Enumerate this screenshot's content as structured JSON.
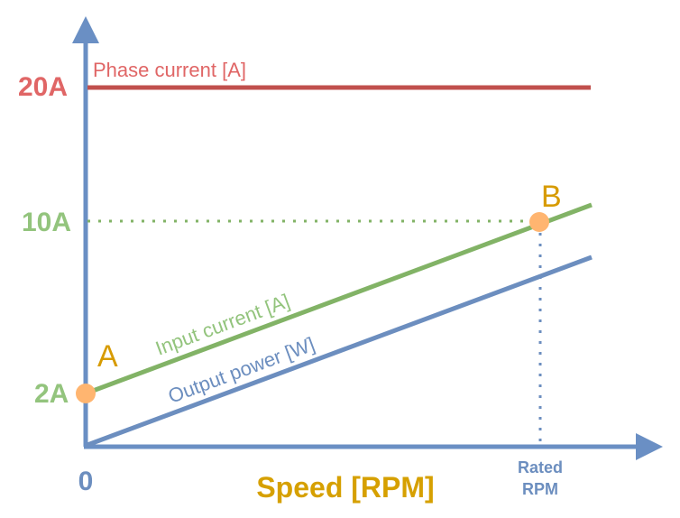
{
  "colors": {
    "axis": "#6a8fc4",
    "phase": "#c0504d",
    "phase_text": "#e06666",
    "input": "#82b366",
    "input_text": "#93c47d",
    "output": "#6c8ebf",
    "point": "#ffb570",
    "point_label": "#d79b00",
    "xlabel": "#d6a000"
  },
  "axes": {
    "origin_label": "0",
    "x_label": "Speed [RPM]",
    "rated_label_line1": "Rated",
    "rated_label_line2": "RPM"
  },
  "y_ticks": [
    "20A",
    "10A",
    "2A"
  ],
  "lines": {
    "phase_current": "Phase current [A]",
    "input_current": "Input current [A]",
    "output_power": "Output power [W]"
  },
  "points": {
    "a": "A",
    "b": "B"
  }
}
